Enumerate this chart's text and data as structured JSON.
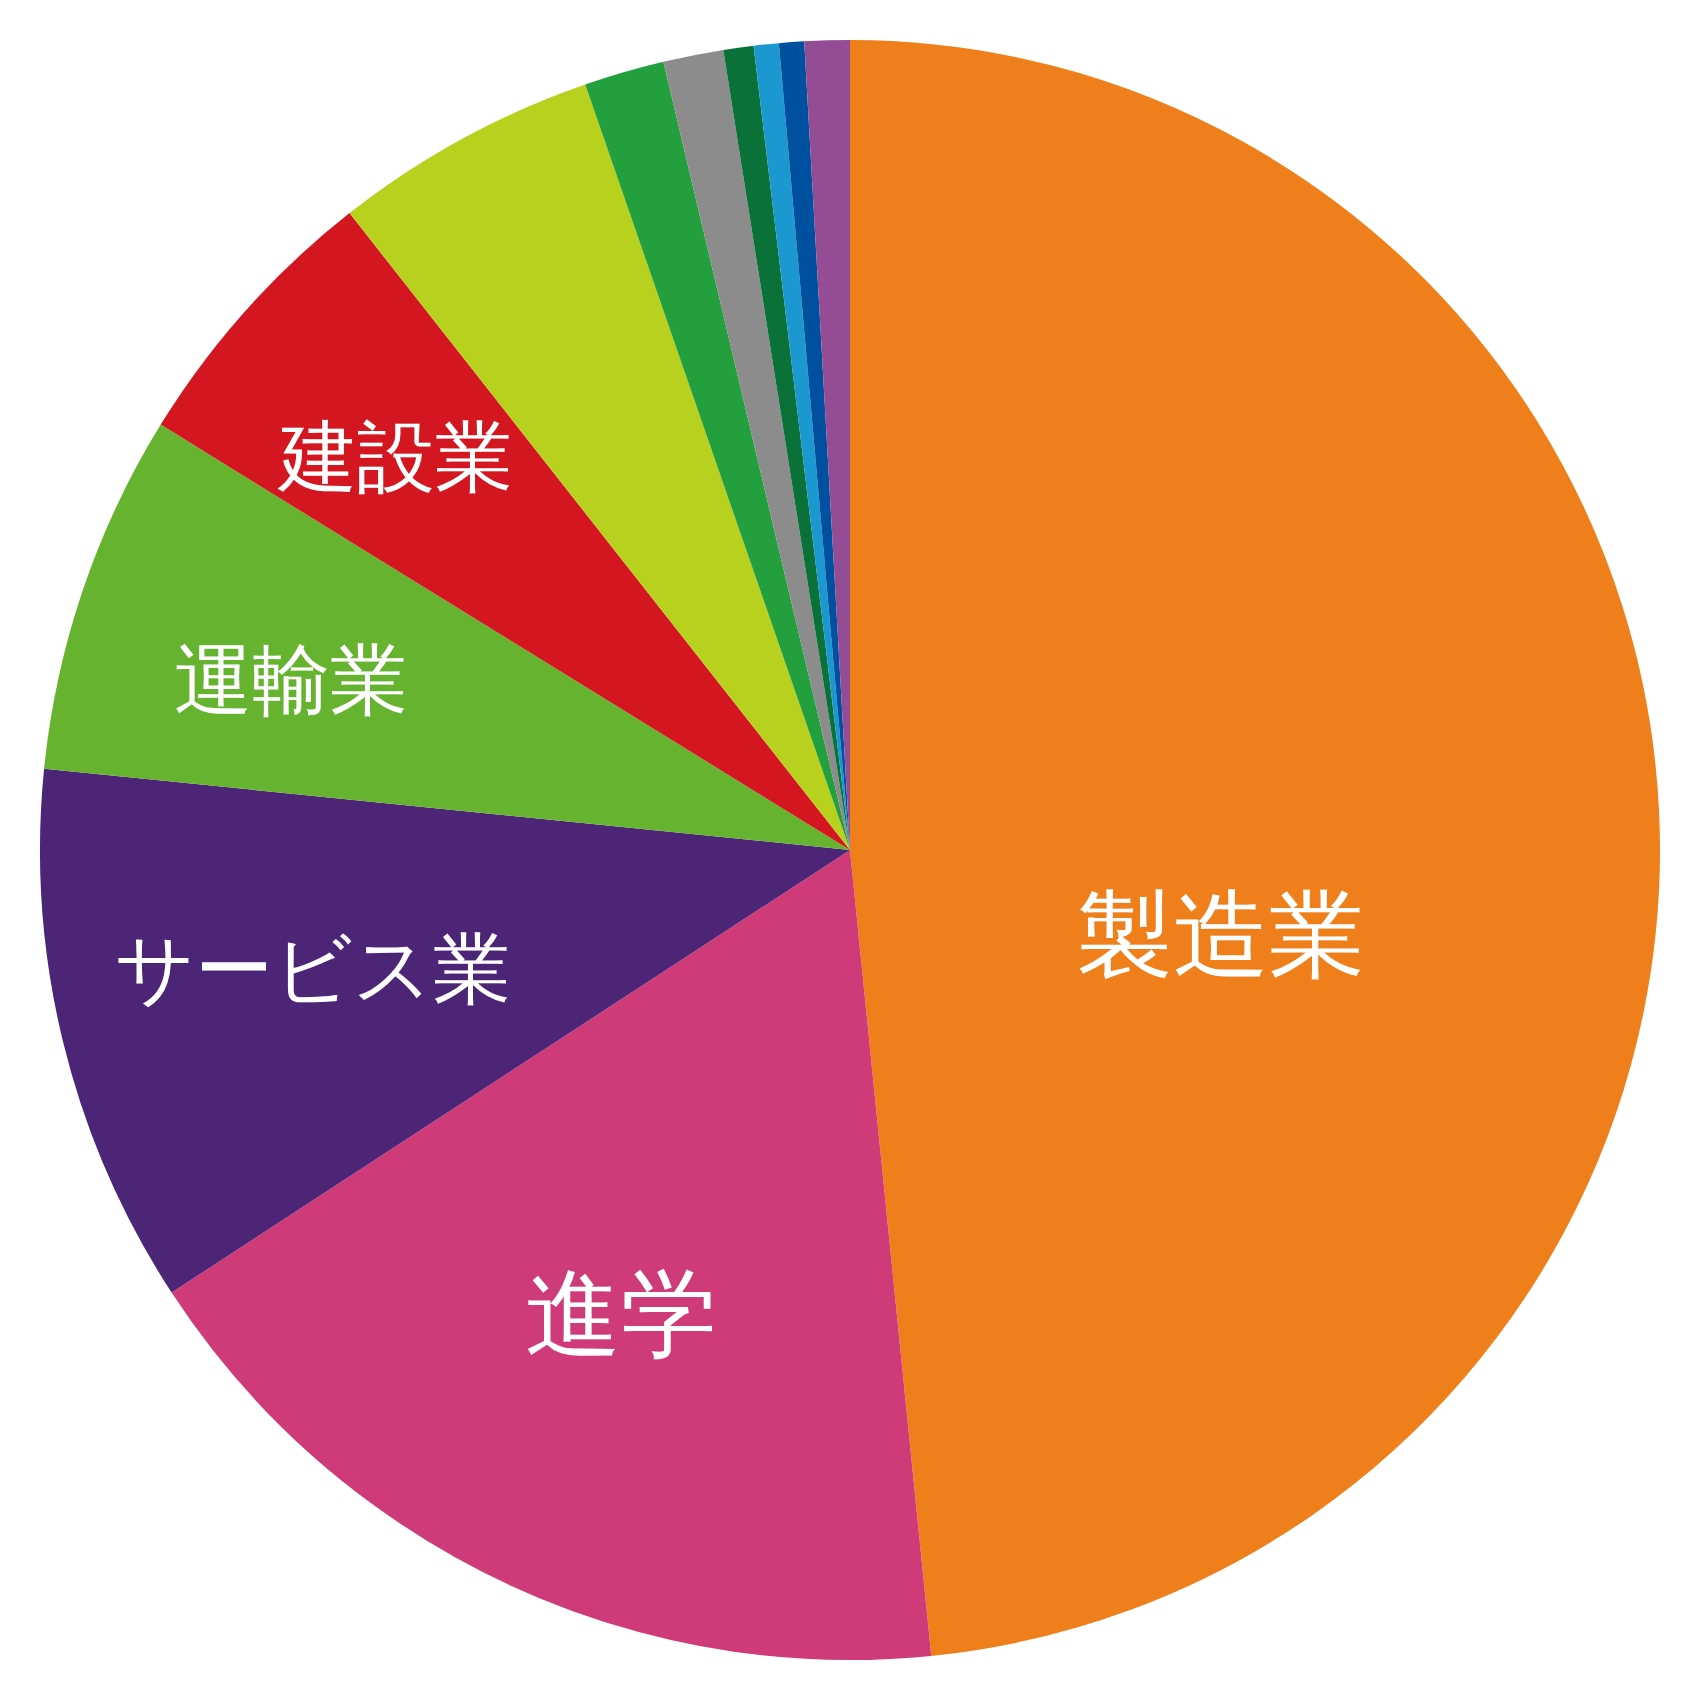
{
  "chart_data": {
    "type": "pie",
    "categories": [
      "製造業",
      "進学",
      "サービス業",
      "運輸業",
      "建設業",
      null,
      null,
      null,
      null,
      null,
      null,
      null
    ],
    "values": [
      48.4,
      17.4,
      10.8,
      7.2,
      5.6,
      5.3,
      1.6,
      1.2,
      0.6,
      0.5,
      0.5,
      0.9
    ],
    "colors": [
      "#ee7f1a",
      "#cf3a78",
      "#4d2577",
      "#65b32e",
      "#d3161f",
      "#b8d01e",
      "#23a03d",
      "#8c8c8c",
      "#0a7238",
      "#1b98d0",
      "#0050a0",
      "#944d94"
    ]
  }
}
